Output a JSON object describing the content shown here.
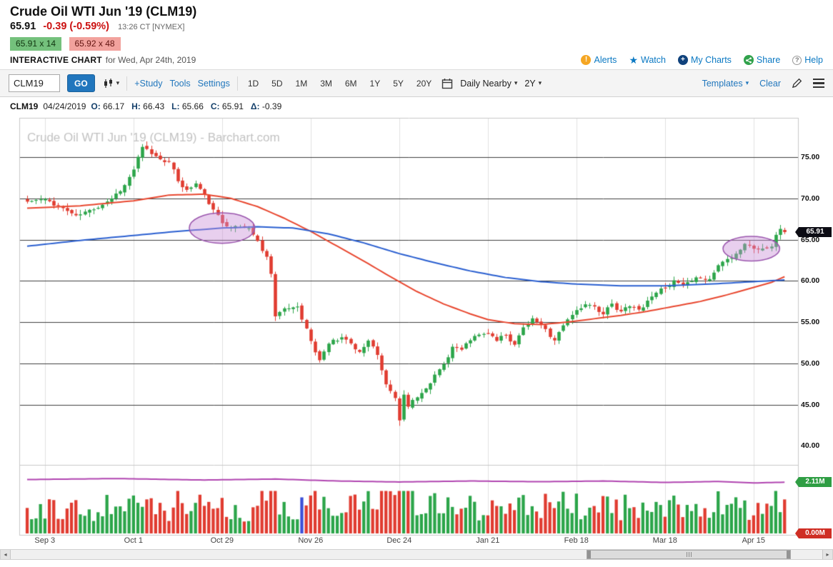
{
  "header": {
    "title": "Crude Oil WTI Jun '19 (CLM19)",
    "last": "65.91",
    "change": "-0.39 (-0.59%)",
    "time": "13:26 CT [NYMEX]",
    "bid": "65.91 x 14",
    "ask": "65.92 x 48",
    "chart_label": "INTERACTIVE CHART",
    "chart_date": "for Wed, Apr 24th, 2019",
    "links": [
      {
        "label": "Alerts"
      },
      {
        "label": "Watch"
      },
      {
        "label": "My Charts"
      },
      {
        "label": "Share"
      },
      {
        "label": "Help"
      }
    ],
    "icon_glyphs": {
      "alert": "!",
      "watch": "★",
      "my_charts": "+",
      "help": "?"
    }
  },
  "toolbar": {
    "symbol_value": "CLM19",
    "go_label": "GO",
    "study_label": "+Study",
    "tools_label": "Tools",
    "settings_label": "Settings",
    "ranges": [
      "1D",
      "5D",
      "1M",
      "3M",
      "6M",
      "1Y",
      "5Y",
      "20Y"
    ],
    "frequency_value": "Daily Nearby",
    "span_value": "2Y",
    "templates_label": "Templates",
    "clear_label": "Clear",
    "caret_glyph": "▾"
  },
  "ohlc_bar": {
    "symbol": "CLM19",
    "date": "04/24/2019",
    "fields": [
      {
        "label": "O:",
        "value": "66.17"
      },
      {
        "label": "H:",
        "value": "66.43"
      },
      {
        "label": "L:",
        "value": "65.66"
      },
      {
        "label": "C:",
        "value": "65.91"
      },
      {
        "label": "Δ:",
        "value": "-0.39"
      }
    ]
  },
  "chart_data": {
    "type": "candlestick",
    "watermark": "Crude Oil WTI Jun '19 (CLM19) - Barchart.com",
    "days": 172,
    "seed": 11,
    "grid": "horizontal-dark, vertical-light",
    "y_range_approx": [
      37.7,
      79.8
    ],
    "y_ticks": [
      {
        "price": 75,
        "label": "75.00"
      },
      {
        "price": 70,
        "label": "70.00"
      },
      {
        "price": 65,
        "label": "65.00"
      },
      {
        "price": 60,
        "label": "60.00"
      },
      {
        "price": 55,
        "label": "55.00"
      },
      {
        "price": 50,
        "label": "50.00"
      },
      {
        "price": 45,
        "label": "45.00"
      },
      {
        "price": 40,
        "label": "40.00"
      }
    ],
    "x_ticks": [
      {
        "day": 4,
        "label": "Sep 3"
      },
      {
        "day": 24,
        "label": "Oct 1"
      },
      {
        "day": 44,
        "label": "Oct 29"
      },
      {
        "day": 64,
        "label": "Nov 26"
      },
      {
        "day": 84,
        "label": "Dec 24"
      },
      {
        "day": 104,
        "label": "Jan 21"
      },
      {
        "day": 124,
        "label": "Feb 18"
      },
      {
        "day": 144,
        "label": "Mar 18"
      },
      {
        "day": 164,
        "label": "Apr 15"
      }
    ],
    "close_anchors": [
      [
        0,
        69.6
      ],
      [
        4,
        69.9
      ],
      [
        8,
        68.8
      ],
      [
        11,
        67.9
      ],
      [
        15,
        68.7
      ],
      [
        19,
        70.0
      ],
      [
        22,
        71.6
      ],
      [
        24,
        73.5
      ],
      [
        26,
        76.2
      ],
      [
        29,
        75.1
      ],
      [
        32,
        74.4
      ],
      [
        34,
        72.1
      ],
      [
        36,
        71.0
      ],
      [
        38,
        71.8
      ],
      [
        40,
        70.4
      ],
      [
        42,
        68.6
      ],
      [
        44,
        67.0
      ],
      [
        47,
        66.6
      ],
      [
        50,
        66.4
      ],
      [
        52,
        64.8
      ],
      [
        54,
        62.9
      ],
      [
        55,
        60.9
      ],
      [
        56,
        55.7
      ],
      [
        58,
        56.6
      ],
      [
        61,
        56.9
      ],
      [
        63,
        54.2
      ],
      [
        65,
        51.3
      ],
      [
        66,
        50.4
      ],
      [
        68,
        52.4
      ],
      [
        71,
        53.2
      ],
      [
        73,
        52.4
      ],
      [
        75,
        51.4
      ],
      [
        77,
        52.7
      ],
      [
        79,
        51.0
      ],
      [
        81,
        47.4
      ],
      [
        83,
        45.8
      ],
      [
        84,
        43.1
      ],
      [
        85,
        46.2
      ],
      [
        86,
        44.8
      ],
      [
        88,
        45.9
      ],
      [
        90,
        47.0
      ],
      [
        92,
        48.6
      ],
      [
        94,
        49.9
      ],
      [
        96,
        52.0
      ],
      [
        98,
        51.6
      ],
      [
        101,
        53.3
      ],
      [
        104,
        53.7
      ],
      [
        106,
        52.7
      ],
      [
        108,
        53.4
      ],
      [
        110,
        52.3
      ],
      [
        112,
        54.3
      ],
      [
        114,
        55.4
      ],
      [
        116,
        54.7
      ],
      [
        119,
        52.8
      ],
      [
        121,
        54.6
      ],
      [
        123,
        55.9
      ],
      [
        126,
        57.2
      ],
      [
        128,
        56.9
      ],
      [
        130,
        55.9
      ],
      [
        132,
        57.2
      ],
      [
        134,
        56.3
      ],
      [
        136,
        56.9
      ],
      [
        138,
        56.5
      ],
      [
        140,
        57.6
      ],
      [
        142,
        58.6
      ],
      [
        144,
        59.2
      ],
      [
        146,
        60.0
      ],
      [
        148,
        59.4
      ],
      [
        150,
        59.9
      ],
      [
        152,
        60.4
      ],
      [
        154,
        60.2
      ],
      [
        156,
        61.9
      ],
      [
        158,
        62.7
      ],
      [
        160,
        63.3
      ],
      [
        162,
        64.5
      ],
      [
        164,
        63.9
      ],
      [
        166,
        63.9
      ],
      [
        168,
        64.1
      ],
      [
        169,
        65.6
      ],
      [
        170,
        66.3
      ],
      [
        171,
        65.91
      ]
    ],
    "ma_red_anchors": [
      [
        0,
        68.8
      ],
      [
        12,
        69.1
      ],
      [
        24,
        69.7
      ],
      [
        32,
        70.4
      ],
      [
        40,
        70.5
      ],
      [
        46,
        70.0
      ],
      [
        52,
        69.0
      ],
      [
        58,
        67.6
      ],
      [
        64,
        66.0
      ],
      [
        70,
        64.2
      ],
      [
        76,
        62.4
      ],
      [
        82,
        60.5
      ],
      [
        88,
        58.7
      ],
      [
        94,
        57.2
      ],
      [
        100,
        56.0
      ],
      [
        104,
        55.3
      ],
      [
        110,
        54.8
      ],
      [
        116,
        54.7
      ],
      [
        122,
        55.0
      ],
      [
        128,
        55.4
      ],
      [
        134,
        55.8
      ],
      [
        140,
        56.3
      ],
      [
        146,
        56.9
      ],
      [
        152,
        57.5
      ],
      [
        158,
        58.3
      ],
      [
        164,
        59.2
      ],
      [
        168,
        59.8
      ],
      [
        171,
        60.5
      ]
    ],
    "ma_blue_anchors": [
      [
        0,
        64.2
      ],
      [
        12,
        64.9
      ],
      [
        24,
        65.5
      ],
      [
        34,
        66.0
      ],
      [
        44,
        66.4
      ],
      [
        52,
        66.55
      ],
      [
        60,
        66.4
      ],
      [
        68,
        65.7
      ],
      [
        76,
        64.6
      ],
      [
        84,
        63.3
      ],
      [
        92,
        62.2
      ],
      [
        100,
        61.2
      ],
      [
        108,
        60.4
      ],
      [
        116,
        59.9
      ],
      [
        124,
        59.6
      ],
      [
        134,
        59.4
      ],
      [
        144,
        59.4
      ],
      [
        154,
        59.6
      ],
      [
        164,
        59.9
      ],
      [
        171,
        60.1
      ]
    ],
    "open_interest_anchors_millions": [
      [
        0,
        2.22
      ],
      [
        20,
        2.26
      ],
      [
        40,
        2.2
      ],
      [
        56,
        2.24
      ],
      [
        70,
        2.16
      ],
      [
        84,
        2.12
      ],
      [
        100,
        2.16
      ],
      [
        116,
        2.13
      ],
      [
        130,
        2.16
      ],
      [
        144,
        2.1
      ],
      [
        156,
        2.14
      ],
      [
        164,
        2.08
      ],
      [
        171,
        2.11
      ]
    ],
    "last_ohlc": {
      "o": 66.17,
      "h": 66.43,
      "l": 65.66,
      "c": 65.91
    },
    "last_price_label": "65.91",
    "oi_label": "2.11M",
    "zero_label": "0.00M",
    "long_lower_wick_days": [
      84
    ],
    "volume_highlight_day": 62,
    "ellipses": [
      {
        "day": 44,
        "price": 66.4,
        "rx_days": 7.4,
        "ry_price": 1.85
      },
      {
        "day": 163.5,
        "price": 63.9,
        "rx_days": 6.4,
        "ry_price": 1.5
      }
    ],
    "colors": {
      "up": "#2ca54a",
      "down": "#e03c31",
      "ma_red": "#e8472f",
      "ma_blue": "#2a5fd0",
      "open_interest": "#b044b0",
      "grid_dark": "#3f3f3f",
      "grid_light": "#e0e0e0",
      "border": "#c9c9c9",
      "watermark": "#c2c2c2",
      "last_badge_bg": "#0c0c14",
      "oi_badge_bg": "#2f9e44",
      "zero_badge_bg": "#cf2e24",
      "ellipse_fill": "rgba(200,140,215,0.42)",
      "ellipse_stroke": "#9a55ad",
      "volume_highlight": "#3b4fd8"
    }
  },
  "scrollbar": {
    "left_glyph": "◂",
    "right_glyph": "▸"
  }
}
